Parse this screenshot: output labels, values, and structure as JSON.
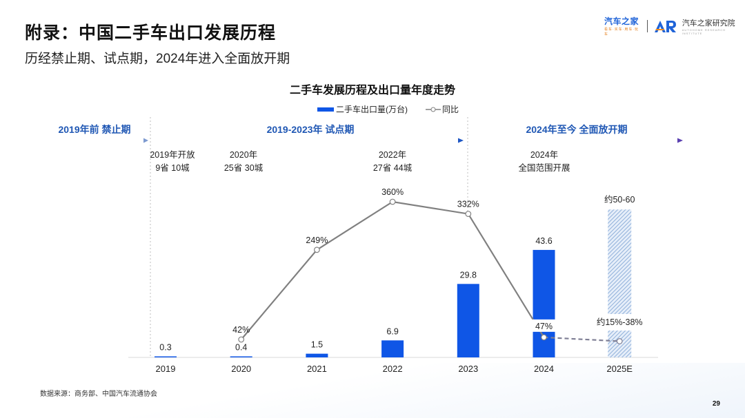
{
  "header": {
    "title": "附录：中国二手车出口发展历程",
    "subtitle": "历经禁止期、试点期，2024年进入全面放开期",
    "logo_autohome": "汽车之家",
    "logo_autohome_tagline": "看车·买车·用车·玩车",
    "logo_institute": "汽车之家研究院",
    "logo_institute_tagline": "AUTOHOME RESEARCH INSTITUTE"
  },
  "phases": [
    {
      "label": "2019年前 禁止期"
    },
    {
      "label": "2019-2023年 试点期"
    },
    {
      "label": "2024年至今 全面放开期"
    }
  ],
  "milestones": [
    {
      "line1": "2019年开放",
      "line2": "9省 10城"
    },
    {
      "line1": "2020年",
      "line2": "25省 30城"
    },
    {
      "line1": "2022年",
      "line2": "27省 44城"
    },
    {
      "line1": "2024年",
      "line2": "全国范围开展"
    }
  ],
  "colors": {
    "bar": "#0f56e6",
    "line": "#808080",
    "phase_text": "#1f57b4",
    "hatch": "#9dbbe0"
  },
  "chart_data": {
    "type": "bar",
    "title": "二手车发展历程及出口量年度走势",
    "legend": [
      "二手车出口量(万台)",
      "同比"
    ],
    "legend_position": "top-center",
    "categories": [
      "2019",
      "2020",
      "2021",
      "2022",
      "2023",
      "2024",
      "2025E"
    ],
    "series": [
      {
        "name": "二手车出口量(万台)",
        "type": "bar",
        "values": [
          0.3,
          0.4,
          1.5,
          6.9,
          29.8,
          43.6,
          null
        ],
        "labels": [
          "0.3",
          "0.4",
          "1.5",
          "6.9",
          "29.8",
          "43.6",
          "约50-60"
        ],
        "estimate": {
          "category": "2025E",
          "range": [
            50,
            60
          ],
          "label": "约50-60"
        }
      },
      {
        "name": "同比",
        "type": "line",
        "values": [
          null,
          42,
          249,
          360,
          332,
          47,
          null
        ],
        "labels": [
          "",
          "42%",
          "249%",
          "360%",
          "332%",
          "47%",
          "约15%-38%"
        ],
        "estimate": {
          "category": "2025E",
          "range": [
            15,
            38
          ],
          "label": "约15%-38%"
        }
      }
    ],
    "xlabel": "",
    "ylabel": "",
    "grid": false
  },
  "footer": {
    "source": "数据来源：商务部、中国汽车流通协会",
    "page": "29"
  }
}
